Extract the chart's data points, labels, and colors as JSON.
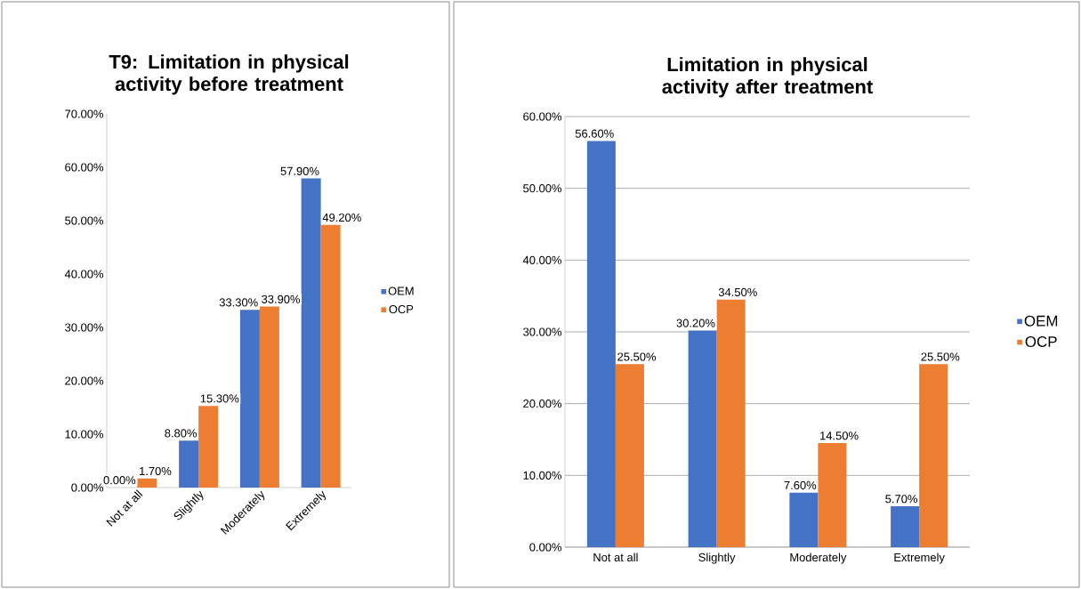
{
  "chart_data": [
    {
      "type": "bar",
      "title": "T9: Limitation in physical activity before treatment",
      "categories": [
        "Not at all",
        "Slightly",
        "Moderately",
        "Extremely"
      ],
      "series": [
        {
          "name": "OEM",
          "color": "#4472c4",
          "values": [
            0.0,
            8.8,
            33.3,
            57.9
          ],
          "value_labels": [
            "0.00%",
            "8.80%",
            "33.30%",
            "57.90%"
          ]
        },
        {
          "name": "OCP",
          "color": "#ed7d31",
          "values": [
            1.7,
            15.3,
            33.9,
            49.2
          ],
          "value_labels": [
            "1.70%",
            "15.30%",
            "33.90%",
            "49.20%"
          ]
        }
      ],
      "ylim": [
        0,
        70
      ],
      "yticks": [
        {
          "value": 0,
          "label": "0.00%"
        },
        {
          "value": 10,
          "label": "10.00%"
        },
        {
          "value": 20,
          "label": "20.00%"
        },
        {
          "value": 30,
          "label": "30.00%"
        },
        {
          "value": 40,
          "label": "40.00%"
        },
        {
          "value": 50,
          "label": "50.00%"
        },
        {
          "value": 60,
          "label": "60.00%"
        },
        {
          "value": 70,
          "label": "70.00%"
        }
      ],
      "grid": false,
      "legend": "right"
    },
    {
      "type": "bar",
      "title": "Limitation in physical activity after treatment",
      "categories": [
        "Not at all",
        "Slightly",
        "Moderately",
        "Extremely"
      ],
      "series": [
        {
          "name": "OEM",
          "color": "#4472c4",
          "values": [
            56.6,
            30.2,
            7.6,
            5.7
          ],
          "value_labels": [
            "56.60%",
            "30.20%",
            "7.60%",
            "5.70%"
          ]
        },
        {
          "name": "OCP",
          "color": "#ed7d31",
          "values": [
            25.5,
            34.5,
            14.5,
            25.5
          ],
          "value_labels": [
            "25.50%",
            "34.50%",
            "14.50%",
            "25.50%"
          ]
        }
      ],
      "ylim": [
        0,
        60
      ],
      "yticks": [
        {
          "value": 0,
          "label": "0.00%"
        },
        {
          "value": 10,
          "label": "10.00%"
        },
        {
          "value": 20,
          "label": "20.00%"
        },
        {
          "value": 30,
          "label": "30.00%"
        },
        {
          "value": 40,
          "label": "40.00%"
        },
        {
          "value": 50,
          "label": "50.00%"
        },
        {
          "value": 60,
          "label": "60.00%"
        }
      ],
      "grid": "y",
      "legend": "right"
    }
  ]
}
